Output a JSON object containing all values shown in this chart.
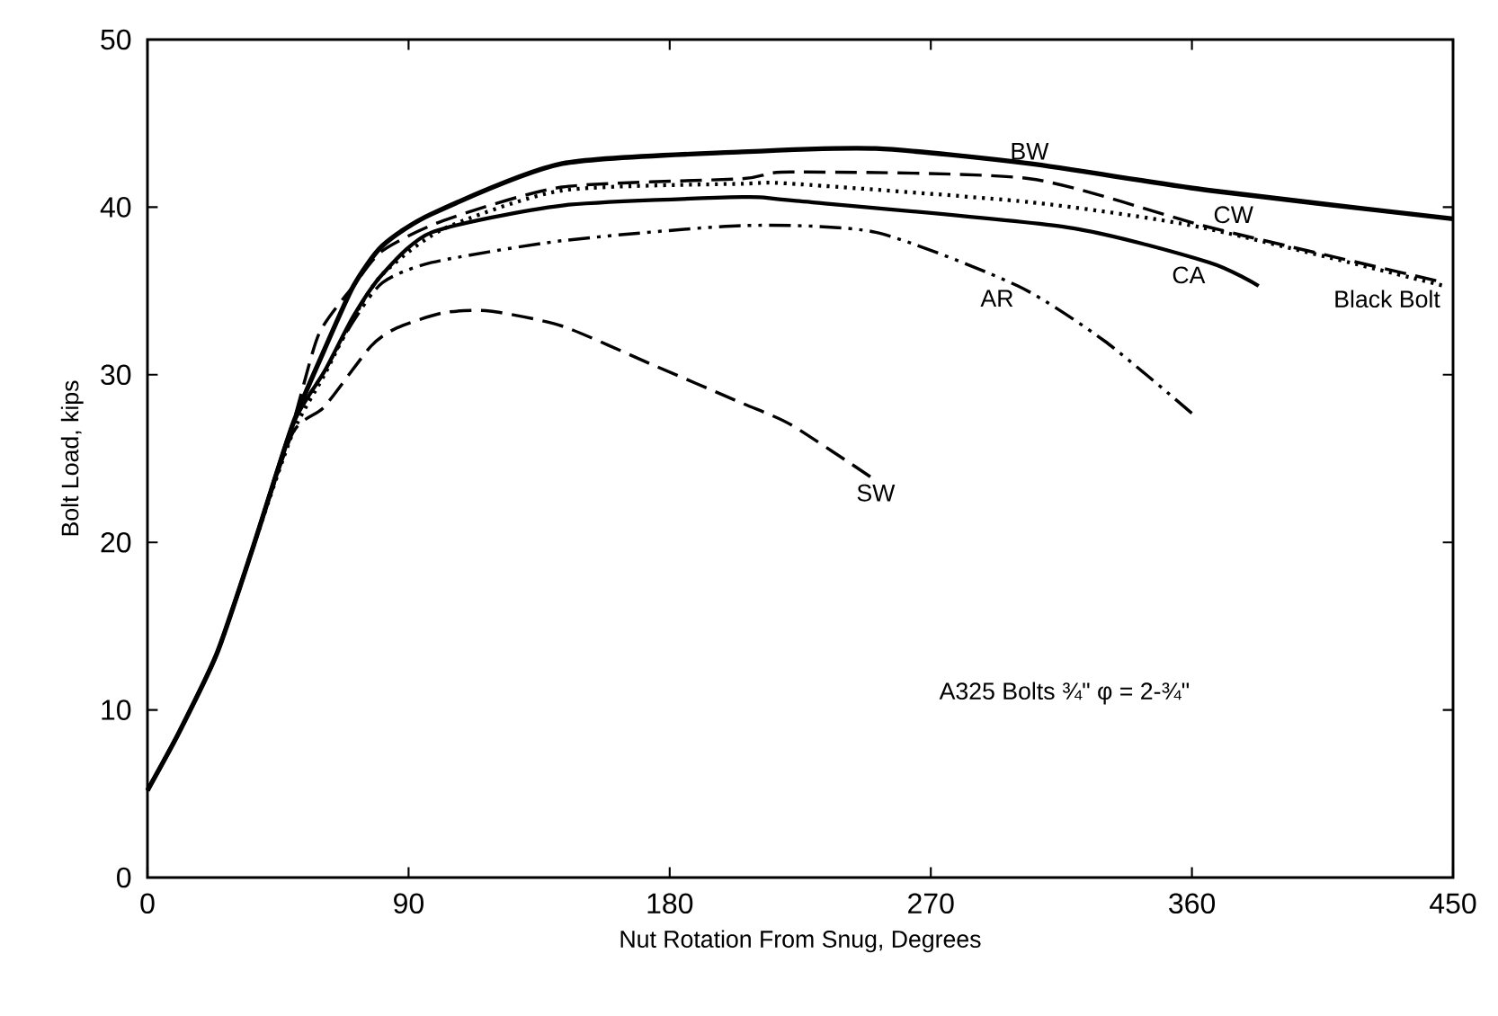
{
  "chart_data": {
    "type": "line",
    "xlabel": "Nut Rotation From Snug, Degrees",
    "ylabel": "Bolt Load, kips",
    "xlim": [
      0,
      450
    ],
    "ylim": [
      0,
      50
    ],
    "xticks": [
      0,
      90,
      180,
      270,
      360,
      450
    ],
    "yticks": [
      0,
      10,
      20,
      30,
      40,
      50
    ],
    "grid": false,
    "legend": false,
    "annotations": [
      "A325 Bolts ¾\" φ = 2-¾\""
    ],
    "series": [
      {
        "name": "BW",
        "color": "#000000",
        "line_style": "solid",
        "x": [
          0,
          11,
          24,
          36,
          50,
          61,
          71,
          81,
          98,
          143,
          205,
          251,
          304,
          366,
          450
        ],
        "values": [
          5.2,
          8.7,
          13.4,
          19.5,
          27,
          31.5,
          35.3,
          37.7,
          39.6,
          42.6,
          43.3,
          43.5,
          42.6,
          41,
          39.3
        ]
      },
      {
        "name": "CW",
        "color": "#000000",
        "line_style": "dashed",
        "x": [
          0,
          11,
          24,
          36,
          50,
          59,
          71,
          81,
          102,
          143,
          205,
          222,
          304,
          366,
          447
        ],
        "values": [
          5.2,
          8.7,
          13.4,
          19.5,
          27,
          32.4,
          35.3,
          37.4,
          39.2,
          41.2,
          41.7,
          42.1,
          41.7,
          38.8,
          35.5
        ]
      },
      {
        "name": "CA",
        "color": "#000000",
        "line_style": "solid",
        "x": [
          0,
          11,
          24,
          36,
          50,
          61,
          71,
          81,
          98,
          143,
          205,
          222,
          317,
          366,
          383
        ],
        "values": [
          5.2,
          8.7,
          13.4,
          19.5,
          27,
          30.2,
          33.5,
          36,
          38.5,
          40.1,
          40.6,
          40.4,
          38.8,
          36.7,
          35.3
        ]
      },
      {
        "name": "Black Bolt",
        "color": "#000000",
        "line_style": "dotted",
        "x": [
          0,
          11,
          24,
          36,
          50,
          61,
          71,
          81,
          102,
          143,
          205,
          222,
          304,
          363,
          447
        ],
        "values": [
          5.2,
          8.7,
          13.4,
          19.5,
          26.5,
          30,
          33.4,
          36,
          38.7,
          41,
          41.4,
          41.4,
          40.3,
          38.8,
          35.3
        ]
      },
      {
        "name": "AR",
        "color": "#000000",
        "line_style": "dashdot",
        "x": [
          0,
          11,
          24,
          36,
          50,
          61,
          71,
          81,
          98,
          143,
          205,
          251,
          300,
          330,
          360
        ],
        "values": [
          5.2,
          8.7,
          13.4,
          19.5,
          27,
          30.2,
          33.2,
          35.5,
          36.7,
          38,
          38.9,
          38.5,
          35.3,
          32,
          27.7
        ]
      },
      {
        "name": "SW",
        "color": "#000000",
        "line_style": "dashed",
        "x": [
          0,
          11,
          24,
          36,
          50,
          61,
          77,
          86,
          102,
          118,
          143,
          174,
          205,
          222,
          251
        ],
        "values": [
          5.2,
          8.7,
          13.4,
          19.5,
          26.5,
          28.1,
          31.7,
          32.8,
          33.7,
          33.8,
          32.9,
          30.6,
          28.3,
          27,
          23.7
        ]
      }
    ]
  }
}
